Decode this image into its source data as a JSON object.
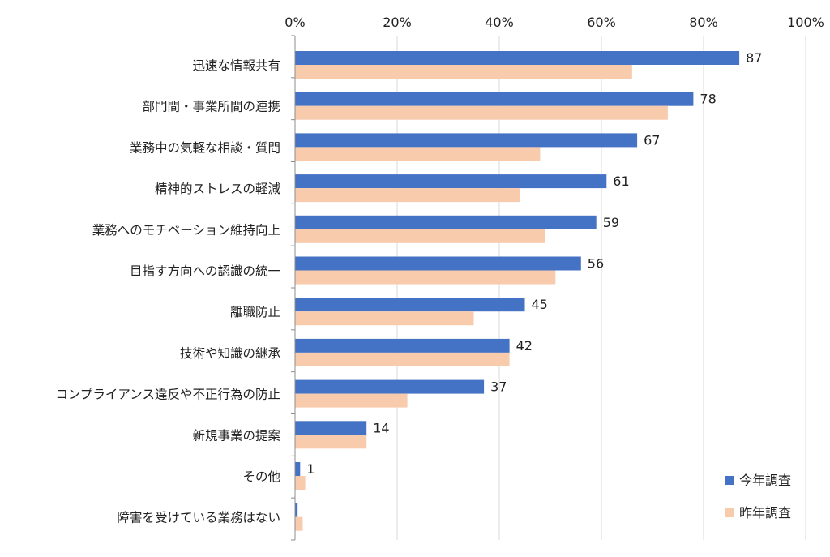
{
  "chart_data": {
    "type": "bar",
    "orientation": "horizontal",
    "xlim": [
      0,
      100
    ],
    "x_ticks": [
      "0%",
      "20%",
      "40%",
      "60%",
      "80%",
      "100%"
    ],
    "x_tick_values": [
      0,
      20,
      40,
      60,
      80,
      100
    ],
    "grid": true,
    "legend_position": "bottom-right",
    "categories": [
      "迅速な情報共有",
      "部門間・事業所間の連携",
      "業務中の気軽な相談・質問",
      "精神的ストレスの軽減",
      "業務へのモチベーション維持向上",
      "目指す方向への認識の統一",
      "離職防止",
      "技術や知識の継承",
      "コンプライアンス違反や不正行為の防止",
      "新規事業の提案",
      "その他",
      "障害を受けている業務はない"
    ],
    "series": [
      {
        "name": "今年調査",
        "color": "#4472C4",
        "values": [
          87,
          78,
          67,
          61,
          59,
          56,
          45,
          42,
          37,
          14,
          1,
          0.5
        ],
        "labels": [
          "87",
          "78",
          "67",
          "61",
          "59",
          "56",
          "45",
          "42",
          "37",
          "14",
          "1",
          ""
        ]
      },
      {
        "name": "昨年調査",
        "color": "#F8CBAD",
        "values": [
          66,
          73,
          48,
          44,
          49,
          51,
          35,
          42,
          22,
          14,
          2,
          1.5
        ],
        "labels": [
          "",
          "",
          "",
          "",
          "",
          "",
          "",
          "",
          "",
          "",
          "",
          ""
        ]
      }
    ]
  }
}
